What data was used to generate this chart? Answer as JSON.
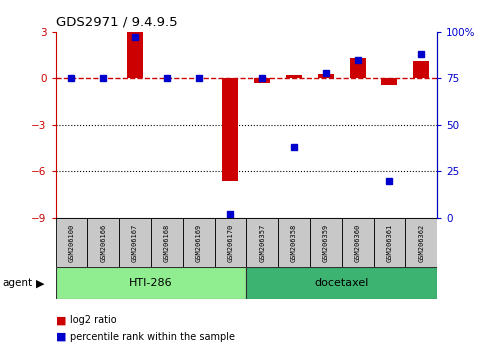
{
  "title": "GDS2971 / 9.4.9.5",
  "samples": [
    "GSM206100",
    "GSM206166",
    "GSM206167",
    "GSM206168",
    "GSM206169",
    "GSM206170",
    "GSM206357",
    "GSM206358",
    "GSM206359",
    "GSM206360",
    "GSM206361",
    "GSM206362"
  ],
  "log2_ratio": [
    0.0,
    0.0,
    3.0,
    0.0,
    0.0,
    -6.6,
    -0.3,
    0.2,
    0.3,
    1.3,
    -0.4,
    1.1
  ],
  "percentile_rank": [
    75,
    75,
    97,
    75,
    75,
    2,
    75,
    38,
    78,
    85,
    20,
    88
  ],
  "groups": [
    {
      "label": "HTI-286",
      "start": 0,
      "end": 5,
      "color": "#90EE90"
    },
    {
      "label": "docetaxel",
      "start": 6,
      "end": 11,
      "color": "#3CB371"
    }
  ],
  "agent_label": "agent",
  "ylim_left": [
    -9,
    3
  ],
  "ylim_right": [
    0,
    100
  ],
  "yticks_left": [
    -9,
    -6,
    -3,
    0,
    3
  ],
  "yticks_right": [
    0,
    25,
    50,
    75,
    100
  ],
  "ytick_labels_right": [
    "0",
    "25",
    "50",
    "75",
    "100%"
  ],
  "bar_color_red": "#CC0000",
  "bar_color_blue": "#0000CC",
  "bg_color": "#FFFFFF",
  "legend_items": [
    {
      "color": "#CC0000",
      "label": "log2 ratio"
    },
    {
      "color": "#0000CC",
      "label": "percentile rank within the sample"
    }
  ],
  "bar_width": 0.5,
  "marker_size": 5
}
